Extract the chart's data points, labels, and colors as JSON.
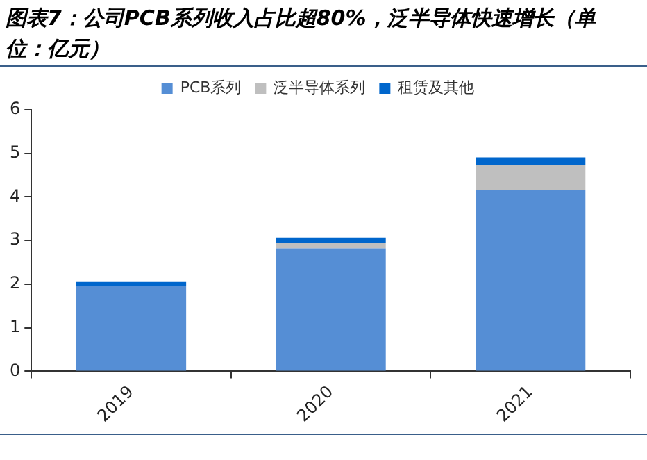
{
  "chart_data": {
    "type": "bar",
    "title": "图表7：公司PCB系列收入占比超80%，泛半导体快速增长（单位：亿元）",
    "categories": [
      "2019",
      "2020",
      "2021"
    ],
    "series": [
      {
        "name": "PCB系列",
        "color": "#558ed5",
        "values": [
          1.95,
          2.82,
          4.16
        ]
      },
      {
        "name": "泛半导体系列",
        "color": "#bfbfbf",
        "values": [
          0,
          0.12,
          0.57
        ]
      },
      {
        "name": "租赁及其他",
        "color": "#0066cc",
        "values": [
          0.1,
          0.13,
          0.18
        ]
      }
    ],
    "stacked": true,
    "ylim": [
      0,
      6
    ],
    "yticks": [
      0,
      1,
      2,
      3,
      4,
      5,
      6
    ],
    "grid": false,
    "legend": "top"
  }
}
